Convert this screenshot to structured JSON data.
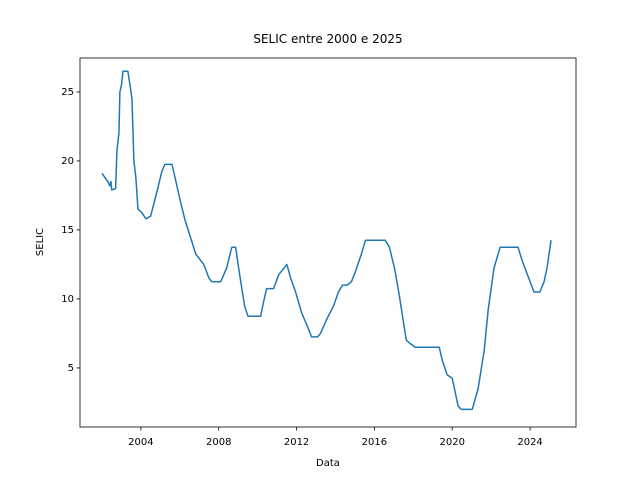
{
  "chart_data": {
    "type": "line",
    "title": "SELIC entre 2000 e 2025",
    "x_label": "Data",
    "y_label": "SELIC",
    "x": [
      2002.0,
      2002.3,
      2002.4,
      2002.46,
      2002.5,
      2002.7,
      2002.77,
      2002.87,
      2002.92,
      2003.0,
      2003.08,
      2003.33,
      2003.44,
      2003.54,
      2003.64,
      2003.74,
      2003.85,
      2004.05,
      2004.26,
      2004.5,
      2004.82,
      2005.08,
      2005.23,
      2005.6,
      2005.8,
      2006.0,
      2006.26,
      2006.82,
      2007.23,
      2007.5,
      2007.64,
      2008.1,
      2008.41,
      2008.67,
      2008.87,
      2008.97,
      2009.13,
      2009.33,
      2009.5,
      2010.15,
      2010.3,
      2010.46,
      2010.82,
      2011.08,
      2011.5,
      2011.7,
      2011.95,
      2012.26,
      2012.56,
      2012.77,
      2013.08,
      2013.23,
      2013.54,
      2013.9,
      2014.15,
      2014.36,
      2014.6,
      2014.82,
      2015.03,
      2015.33,
      2015.54,
      2016.56,
      2016.77,
      2017.03,
      2017.28,
      2017.5,
      2017.64,
      2017.85,
      2018.1,
      2019.33,
      2019.5,
      2019.74,
      2020.0,
      2020.3,
      2020.46,
      2021.03,
      2021.33,
      2021.64,
      2021.85,
      2022.15,
      2022.46,
      2023.38,
      2023.6,
      2024.0,
      2024.2,
      2024.5,
      2024.72,
      2024.87,
      2025.08
    ],
    "values": [
      19.1,
      18.5,
      18.2,
      18.5,
      17.9,
      18.0,
      20.8,
      22.0,
      25.0,
      25.5,
      26.5,
      26.5,
      25.5,
      24.5,
      20.0,
      18.8,
      16.5,
      16.25,
      15.8,
      16.0,
      17.75,
      19.25,
      19.75,
      19.75,
      18.5,
      17.25,
      15.75,
      13.25,
      12.5,
      11.5,
      11.25,
      11.25,
      12.25,
      13.75,
      13.75,
      12.75,
      11.25,
      9.5,
      8.75,
      8.75,
      9.75,
      10.75,
      10.75,
      11.75,
      12.5,
      11.5,
      10.5,
      9.0,
      8.0,
      7.25,
      7.25,
      7.5,
      8.5,
      9.5,
      10.5,
      11.0,
      11.0,
      11.25,
      12.0,
      13.25,
      14.25,
      14.25,
      13.75,
      12.25,
      10.25,
      8.25,
      7.0,
      6.75,
      6.5,
      6.5,
      5.5,
      4.5,
      4.25,
      2.25,
      2.0,
      2.0,
      3.5,
      6.25,
      9.25,
      12.25,
      13.75,
      13.75,
      12.75,
      11.25,
      10.5,
      10.5,
      11.25,
      12.25,
      14.25
    ],
    "color": "#1f77b4",
    "xlim": [
      2000.87,
      2026.36
    ],
    "xticks": [
      2004,
      2008,
      2012,
      2016,
      2020,
      2024
    ],
    "ylim": [
      0.72,
      27.46
    ],
    "yticks": [
      5,
      10,
      15,
      20,
      25
    ],
    "grid": false
  }
}
